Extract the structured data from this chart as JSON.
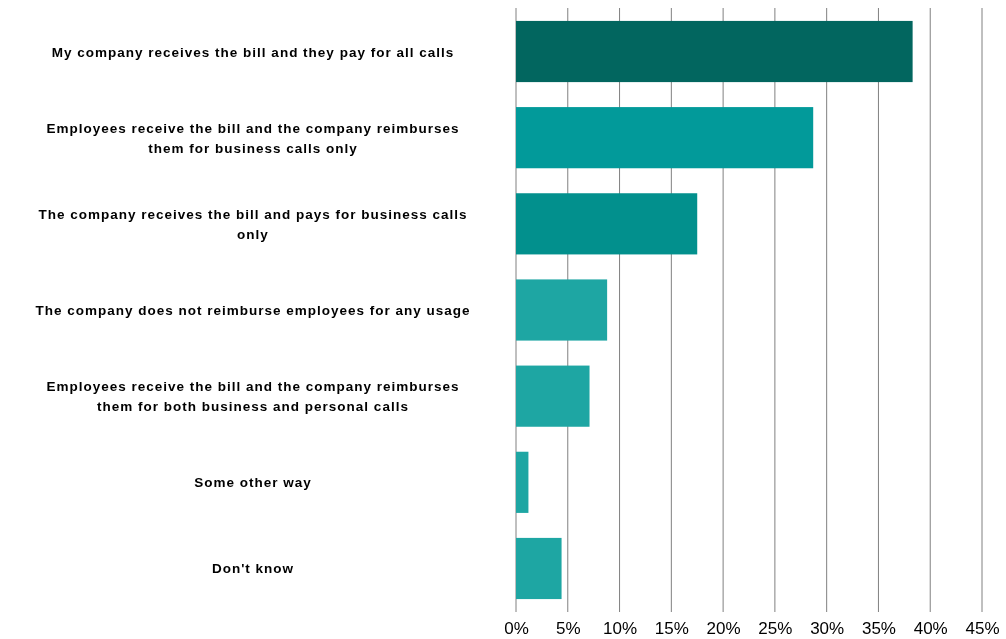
{
  "chart_data": {
    "type": "bar",
    "orientation": "horizontal",
    "categories": [
      "My company receives the bill and they pay for all calls",
      "Employees receive the bill and the company reimburses them for business calls only",
      "The company receives the bill and pays for business calls only",
      "The company does not reimburse employees for any usage",
      "Employees receive the bill and the company reimburses them for both business and personal calls",
      "Some other way",
      "Don't know"
    ],
    "values": [
      38.3,
      28.7,
      17.5,
      8.8,
      7.1,
      1.2,
      4.4
    ],
    "colors": [
      "#02665f",
      "#029a9a",
      "#02908d",
      "#1ea6a3",
      "#1ea6a3",
      "#1ea6a3",
      "#1ea6a3"
    ],
    "xlim": [
      0,
      45
    ],
    "xticks": [
      {
        "value": 0,
        "label": "0%"
      },
      {
        "value": 5,
        "label": "5%"
      },
      {
        "value": 10,
        "label": "10%"
      },
      {
        "value": 15,
        "label": "15%"
      },
      {
        "value": 20,
        "label": "20%"
      },
      {
        "value": 25,
        "label": "25%"
      },
      {
        "value": 30,
        "label": "30%"
      },
      {
        "value": 35,
        "label": "35%"
      },
      {
        "value": 40,
        "label": "40%"
      },
      {
        "value": 45,
        "label": "45%"
      }
    ],
    "grid": "x"
  }
}
